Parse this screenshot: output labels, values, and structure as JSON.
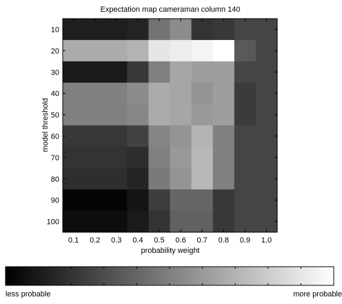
{
  "chart_data": {
    "type": "heatmap",
    "title": "Expectation map cameraman column 140",
    "xlabel": "probability weight",
    "ylabel": "model threshold",
    "x_ticks": [
      "0.1",
      "0.2",
      "0.3",
      "0.4",
      "0.5",
      "0.6",
      "0.7",
      "0.8",
      "0.9",
      "1.0"
    ],
    "y_ticks": [
      "10",
      "20",
      "30",
      "40",
      "50",
      "60",
      "70",
      "80",
      "90",
      "100"
    ],
    "colorbar": {
      "low_label": "less probable",
      "high_label": "more probable",
      "low_color": "#000000",
      "high_color": "#ffffff"
    },
    "values": [
      [
        0.12,
        0.12,
        0.12,
        0.14,
        0.45,
        0.55,
        0.2,
        0.22,
        0.27,
        0.27
      ],
      [
        0.67,
        0.67,
        0.67,
        0.7,
        0.9,
        0.93,
        0.96,
        1.0,
        0.35,
        0.27
      ],
      [
        0.1,
        0.1,
        0.1,
        0.22,
        0.5,
        0.65,
        0.62,
        0.62,
        0.27,
        0.27
      ],
      [
        0.5,
        0.5,
        0.5,
        0.55,
        0.67,
        0.65,
        0.58,
        0.62,
        0.23,
        0.27
      ],
      [
        0.5,
        0.5,
        0.5,
        0.53,
        0.67,
        0.65,
        0.6,
        0.62,
        0.23,
        0.27
      ],
      [
        0.22,
        0.22,
        0.22,
        0.26,
        0.52,
        0.58,
        0.7,
        0.5,
        0.27,
        0.27
      ],
      [
        0.2,
        0.2,
        0.2,
        0.18,
        0.5,
        0.6,
        0.72,
        0.5,
        0.27,
        0.27
      ],
      [
        0.18,
        0.18,
        0.18,
        0.14,
        0.48,
        0.58,
        0.72,
        0.5,
        0.27,
        0.27
      ],
      [
        0.02,
        0.02,
        0.02,
        0.08,
        0.24,
        0.4,
        0.4,
        0.22,
        0.27,
        0.27
      ],
      [
        0.05,
        0.05,
        0.05,
        0.1,
        0.2,
        0.38,
        0.38,
        0.22,
        0.27,
        0.27
      ]
    ]
  }
}
